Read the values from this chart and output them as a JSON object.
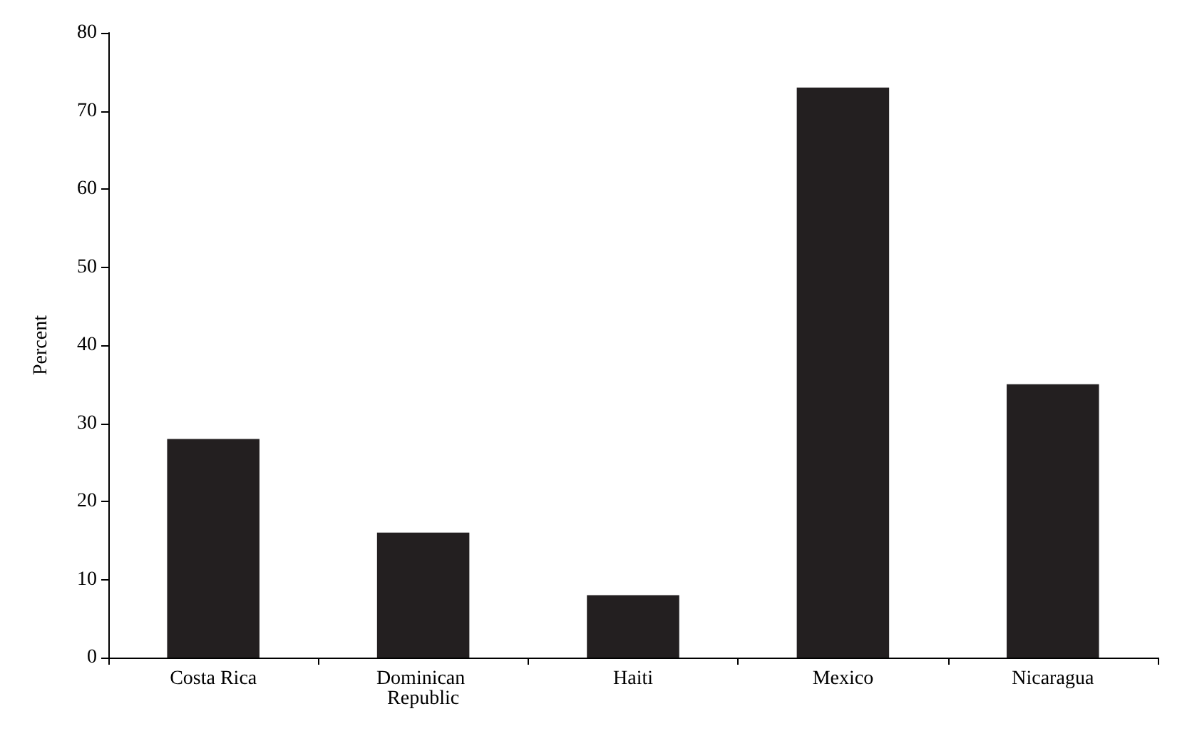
{
  "chart_data": {
    "type": "bar",
    "ylabel": "Percent",
    "categories": [
      "Costa Rica",
      "Dominican Republic",
      "Haiti",
      "Mexico",
      "Nicaragua"
    ],
    "values": [
      28,
      16,
      8,
      73,
      35
    ],
    "color": "#231f20",
    "ylim": [
      0,
      80
    ],
    "yticks": [
      0,
      10,
      20,
      30,
      40,
      50,
      60,
      70,
      80
    ],
    "grid": false
  }
}
